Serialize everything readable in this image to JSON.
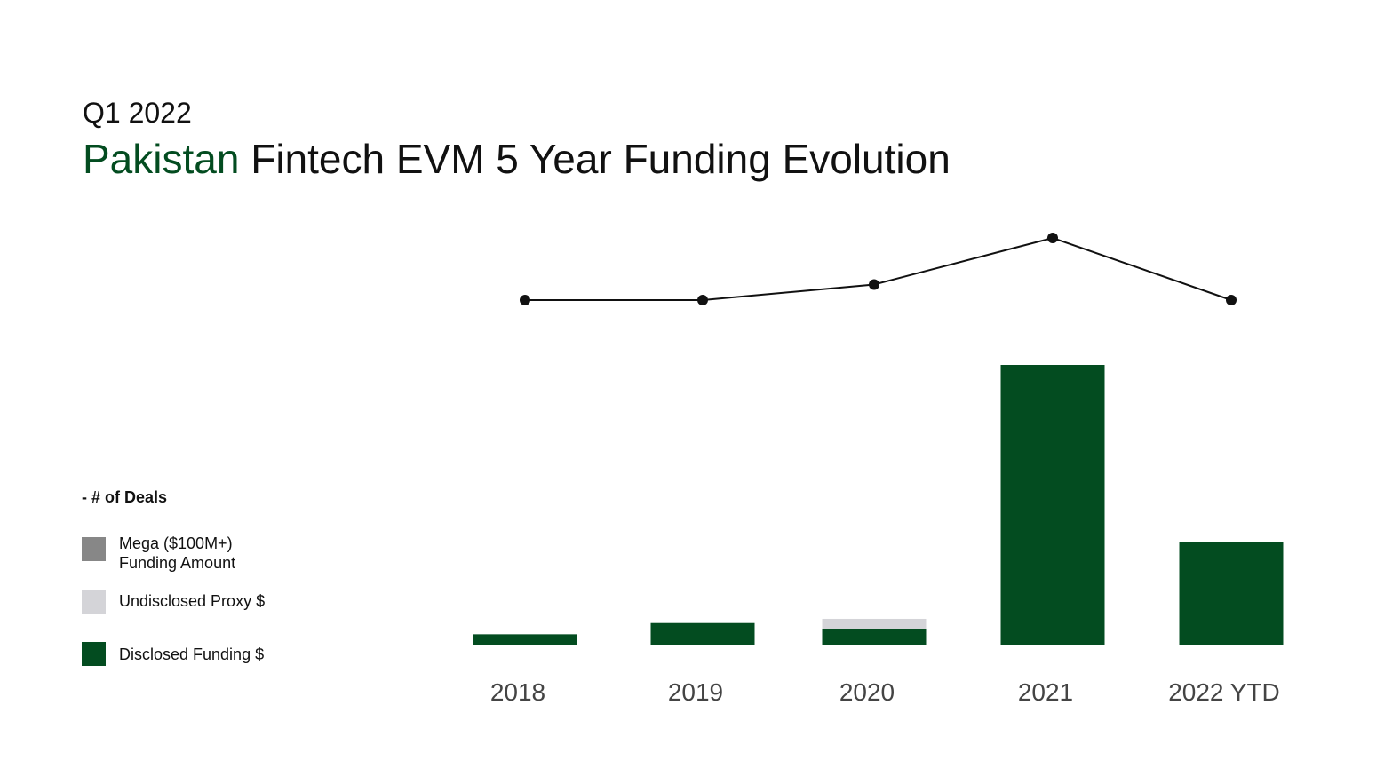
{
  "header": {
    "period": "Q1 2022",
    "title_accent": "Pakistan",
    "title_rest": " Fintech EVM 5 Year Funding Evolution"
  },
  "legend": {
    "deals_label": "- # of Deals",
    "items": [
      {
        "label": "Mega ($100M+)\nFunding Amount",
        "color": "#878787"
      },
      {
        "label": "Undisclosed Proxy $",
        "color": "#d4d4d8"
      },
      {
        "label": "Disclosed Funding $",
        "color": "#034c20"
      }
    ]
  },
  "colors": {
    "accent": "#034c20",
    "disclosed": "#034c20",
    "undisclosed": "#d4d4d8",
    "mega": "#878787",
    "deals_line": "#111111"
  },
  "chart_data": {
    "type": "bar",
    "categories": [
      "2018",
      "2019",
      "2020",
      "2021",
      "2022 YTD"
    ],
    "series": [
      {
        "name": "Disclosed Funding $",
        "values": [
          4,
          8,
          6,
          100,
          37
        ]
      },
      {
        "name": "Undisclosed Proxy $",
        "values": [
          0,
          0,
          3.5,
          0,
          0
        ]
      },
      {
        "name": "Mega ($100M+) Funding Amount",
        "values": [
          0,
          0,
          0,
          0,
          0
        ]
      }
    ],
    "line_series": {
      "name": "# of Deals",
      "values": [
        20,
        20,
        23,
        32,
        20
      ]
    },
    "ylim": [
      0,
      100
    ],
    "stacked": true,
    "grid": false,
    "legend_position": "left"
  }
}
